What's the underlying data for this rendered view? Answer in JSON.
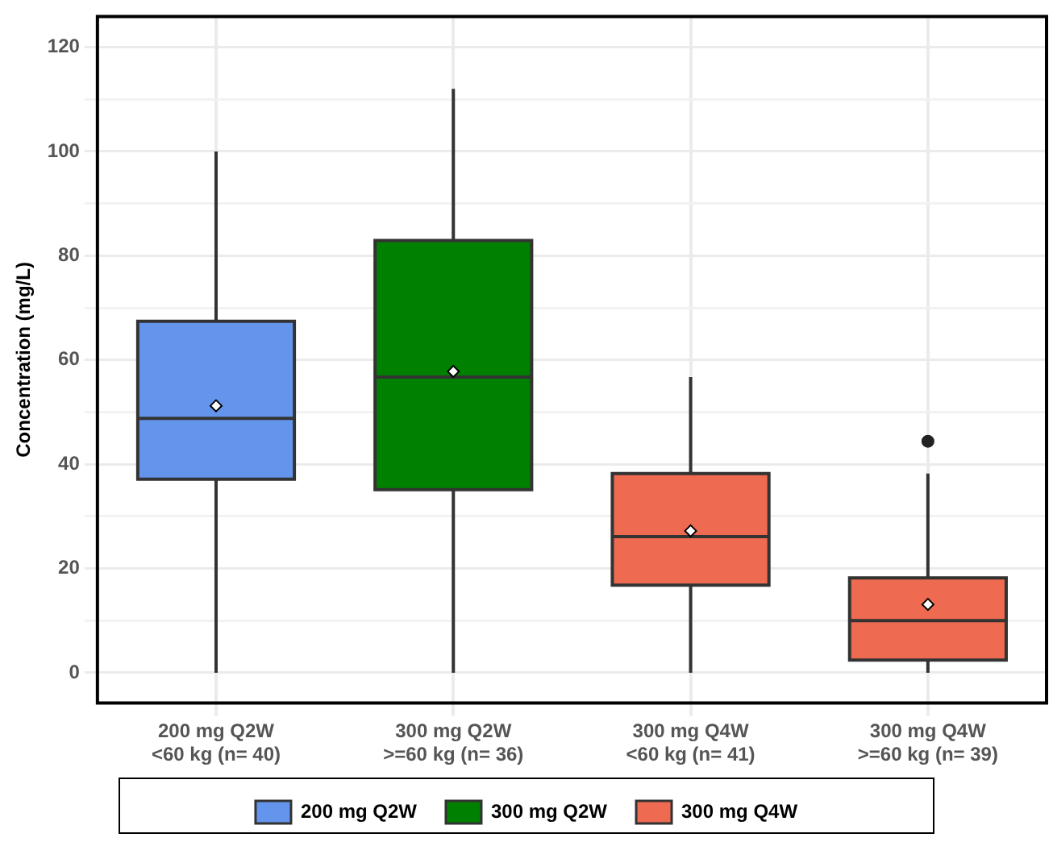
{
  "chart_data": {
    "type": "box",
    "ylabel": "Concentration (mg/L)",
    "categories": [
      "200 mg Q2W\n<60 kg (n= 40)",
      "300 mg Q2W\n>=60 kg (n= 36)",
      "300 mg Q4W\n<60 kg (n= 41)",
      "300 mg Q4W\n>=60 kg (n= 39)"
    ],
    "series": [
      {
        "name": "200 mg Q2W",
        "color": "#6495ed",
        "boxes": [
          {
            "low": 0,
            "q1": 37.1,
            "median": 48.8,
            "q3": 67.4,
            "high": 100,
            "mean": 51.2
          },
          null,
          null,
          null
        ]
      },
      {
        "name": "300 mg Q2W",
        "color": "#008000",
        "boxes": [
          null,
          {
            "low": 0,
            "q1": 35.1,
            "median": 56.7,
            "q3": 82.9,
            "high": 112,
            "mean": 57.8
          },
          null,
          null
        ]
      },
      {
        "name": "300 mg Q4W",
        "color": "#ee6a50",
        "boxes": [
          null,
          null,
          {
            "low": 0,
            "q1": 16.8,
            "median": 26.1,
            "q3": 38.2,
            "high": 56.7,
            "mean": 27.2
          },
          {
            "low": 0,
            "q1": 2.4,
            "median": 10,
            "q3": 18.2,
            "high": 38.2,
            "mean": 13.1,
            "outliers": [
              44.4
            ]
          }
        ]
      }
    ],
    "ylim": [
      -5.8,
      125.9
    ],
    "yticks": [
      0,
      {
        "value": 10,
        "label": null
      },
      20,
      {
        "value": 30,
        "label": null
      },
      40,
      {
        "value": 50,
        "label": null
      },
      60,
      {
        "value": 70,
        "label": null
      },
      80,
      {
        "value": 90,
        "label": null
      },
      100,
      {
        "value": 110,
        "label": null
      },
      120
    ],
    "grid": true,
    "legend": "bottom",
    "marker": "diamond"
  }
}
